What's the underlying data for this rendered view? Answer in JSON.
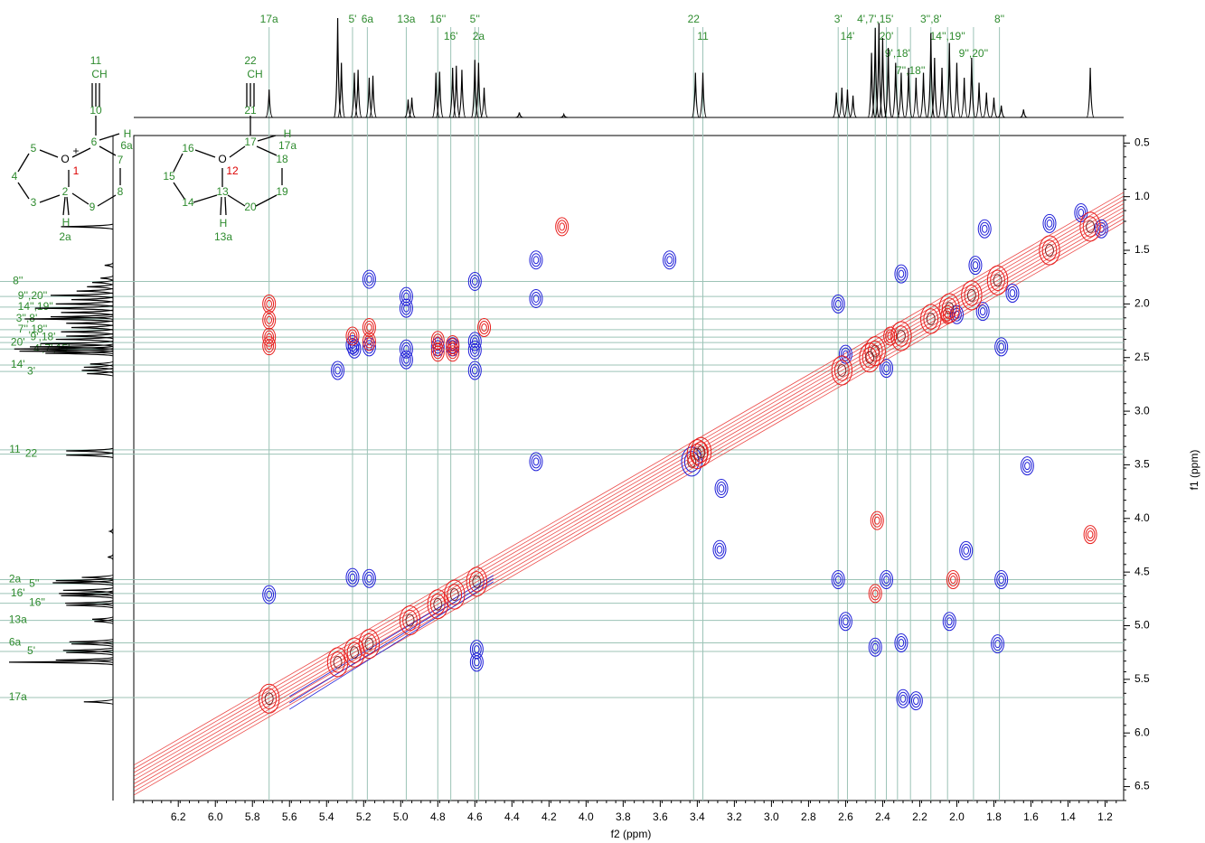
{
  "chart_data": {
    "type": "nmr2d",
    "xlabel": "f2 (ppm)",
    "ylabel": "f1 (ppm)",
    "xlim": [
      6.44,
      1.1
    ],
    "ylim": [
      0.43,
      6.63
    ],
    "xticks": [
      6.2,
      {
        "value": 6,
        "label": "6.0"
      },
      5.8,
      5.6,
      5.4,
      5.2,
      {
        "value": 5,
        "label": "5.0"
      },
      4.8,
      4.6,
      4.4,
      4.2,
      {
        "value": 4,
        "label": "4.0"
      },
      3.8,
      3.6,
      3.4,
      3.2,
      {
        "value": 3,
        "label": "3.0"
      },
      2.8,
      2.6,
      2.4,
      2.2,
      {
        "value": 2,
        "label": "2.0"
      },
      1.8,
      1.6,
      1.4,
      1.2
    ],
    "yticks": [
      0.5,
      {
        "value": 1,
        "label": "1.0"
      },
      1.5,
      {
        "value": 2,
        "label": "2.0"
      },
      2.5,
      {
        "value": 3,
        "label": "3.0"
      },
      3.5,
      {
        "value": 4,
        "label": "4.0"
      },
      4.5,
      {
        "value": 5,
        "label": "5.0"
      },
      5.5,
      {
        "value": 6,
        "label": "6.0"
      },
      6.5
    ],
    "red_color": "#e8201e",
    "blue_color": "#1f1fd8",
    "assignment_color": "#2e8b2e",
    "guide_color": "#9cc3b6",
    "f2_assignments": {
      "labels": [
        "17a",
        "5'",
        "6a",
        "13a",
        "16''",
        "16'",
        "5''",
        "2a",
        "22",
        "11",
        "3'",
        "14'",
        "4',7',15'",
        "20'",
        "9',18'",
        "7'',18''",
        "3'',8'",
        "14'',19''",
        "9'',20''",
        "8''"
      ],
      "x": [
        5.71,
        5.26,
        5.18,
        4.97,
        4.8,
        4.73,
        4.6,
        4.58,
        3.42,
        3.37,
        2.64,
        2.59,
        2.44,
        2.38,
        2.32,
        2.25,
        2.14,
        2.05,
        1.91,
        1.77
      ]
    },
    "f1_assignments": {
      "labels": [
        "8''",
        "9'',20''",
        "14'',19''",
        "3'',8'",
        "7'',18''",
        "9',18'",
        "20'",
        "4',7',15'",
        "14'",
        "3'",
        "11",
        "22",
        "2a",
        "5''",
        "16'",
        "16''",
        "13a",
        "6a",
        "5'",
        "17a"
      ],
      "y": [
        1.79,
        1.93,
        2.03,
        2.14,
        2.24,
        2.31,
        2.36,
        2.42,
        2.57,
        2.63,
        3.36,
        3.4,
        4.57,
        4.61,
        4.7,
        4.79,
        4.95,
        5.16,
        5.24,
        5.67
      ]
    },
    "projection": {
      "x": [
        5.71,
        5.34,
        5.32,
        5.25,
        5.23,
        5.17,
        5.15,
        4.96,
        4.94,
        4.81,
        4.79,
        4.72,
        4.7,
        4.67,
        4.6,
        4.58,
        4.55,
        4.36,
        4.12,
        3.41,
        3.37,
        2.65,
        2.62,
        2.59,
        2.56,
        2.46,
        2.44,
        2.42,
        2.4,
        2.37,
        2.33,
        2.3,
        2.26,
        2.22,
        2.18,
        2.14,
        2.12,
        2.08,
        2.04,
        2,
        1.96,
        1.92,
        1.88,
        1.84,
        1.8,
        1.76,
        1.64,
        1.28
      ],
      "values": [
        28,
        100,
        55,
        45,
        48,
        40,
        42,
        18,
        20,
        45,
        46,
        50,
        52,
        48,
        58,
        55,
        30,
        5,
        3,
        45,
        45,
        25,
        30,
        28,
        22,
        65,
        90,
        95,
        80,
        70,
        55,
        45,
        50,
        40,
        45,
        85,
        60,
        50,
        75,
        55,
        40,
        60,
        35,
        25,
        20,
        12,
        8,
        50
      ]
    },
    "red_peaks": {
      "x": [
        5.71,
        5.34,
        5.25,
        5.17,
        4.95,
        4.8,
        4.71,
        4.59,
        3.4,
        3.38,
        2.62,
        2.44,
        2.3,
        2.14,
        2.04,
        1.92,
        1.78,
        1.5,
        1.28,
        5.71,
        5.71,
        5.71,
        5.71,
        5.26,
        5.17,
        5.17,
        4.8,
        4.8,
        4.72,
        4.72,
        4.55,
        4.13,
        2.44,
        2.02,
        2.43,
        1.28,
        2.47,
        2.36,
        2.05
      ],
      "y": [
        5.68,
        5.34,
        5.25,
        5.17,
        4.95,
        4.8,
        4.71,
        4.59,
        3.4,
        3.38,
        2.62,
        2.44,
        2.3,
        2.14,
        2.04,
        1.92,
        1.78,
        1.5,
        1.28,
        2,
        2.15,
        2.31,
        2.39,
        2.3,
        2.22,
        2.35,
        2.34,
        2.45,
        2.38,
        2.45,
        2.22,
        1.28,
        4.7,
        4.57,
        4.02,
        4.15,
        2.5,
        2.3,
        2.1
      ]
    },
    "blue_peaks": {
      "x": [
        5.34,
        5.26,
        5.25,
        5.17,
        5.17,
        4.97,
        4.97,
        4.97,
        4.97,
        4.8,
        4.72,
        4.6,
        4.6,
        4.6,
        4.6,
        4.27,
        4.27,
        3.55,
        4.27,
        3.43,
        3.27,
        3.28,
        1.62,
        5.26,
        5.17,
        2.64,
        2.38,
        2.6,
        2.04,
        2.44,
        2.22,
        2.29,
        4.59,
        4.59,
        5.71,
        2.64,
        2.6,
        2.38,
        1.76,
        1.86,
        1.7,
        2.3,
        1.9,
        1.85,
        1.5,
        1.33,
        1.22,
        2,
        1.95,
        1.76,
        1.78,
        2.3
      ],
      "y": [
        2.62,
        2.38,
        2.42,
        1.77,
        2.4,
        1.93,
        2.04,
        2.42,
        2.52,
        2.4,
        2.4,
        1.79,
        2.35,
        2.43,
        2.62,
        1.59,
        1.95,
        1.59,
        3.47,
        3.47,
        3.72,
        4.29,
        3.51,
        4.55,
        4.56,
        4.57,
        4.57,
        4.96,
        4.96,
        5.2,
        5.7,
        5.68,
        5.22,
        5.34,
        4.71,
        2,
        2.47,
        2.6,
        2.4,
        2.07,
        1.9,
        1.72,
        1.64,
        1.3,
        1.25,
        1.15,
        1.3,
        2.1,
        4.3,
        4.57,
        5.17,
        5.16
      ]
    },
    "structures": [
      {
        "atoms": [
          "11",
          "CH",
          "10",
          "6",
          "O",
          "+",
          "1",
          "5",
          "4",
          "3",
          "2",
          "9",
          "8",
          "7",
          "H",
          "6a",
          "H",
          "2a"
        ]
      },
      {
        "atoms": [
          "22",
          "CH",
          "21",
          "17",
          "H",
          "17a",
          "16",
          "O",
          "12",
          "18",
          "15",
          "13",
          "19",
          "14",
          "20",
          "H",
          "13a"
        ]
      }
    ]
  }
}
